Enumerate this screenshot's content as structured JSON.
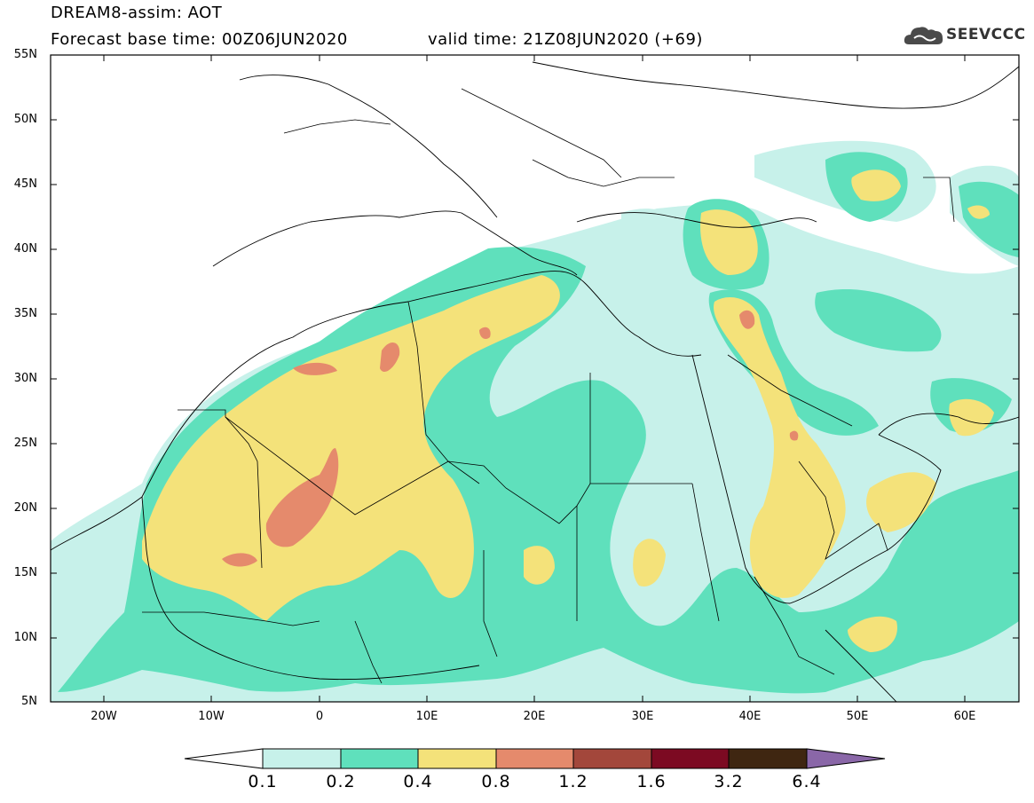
{
  "title": {
    "line1": "DREAM8-assim: AOT",
    "line2": "Forecast base time: 00Z06JUN2020",
    "line2b": "valid time: 21Z08JUN2020 (+69)"
  },
  "logo": {
    "text": "SEEVCCC",
    "icon": "cloud-icon"
  },
  "axes": {
    "lat_labels": [
      "55N",
      "50N",
      "45N",
      "40N",
      "35N",
      "30N",
      "25N",
      "20N",
      "15N",
      "10N",
      "5N"
    ],
    "lon_labels": [
      "20W",
      "10W",
      "0",
      "10E",
      "20E",
      "30E",
      "40E",
      "50E",
      "60E"
    ],
    "lat_range": [
      5,
      55
    ],
    "lon_range": [
      -25,
      65
    ]
  },
  "colorbar": {
    "labels": [
      "0.1",
      "0.2",
      "0.4",
      "0.8",
      "1.2",
      "1.6",
      "3.2",
      "6.4"
    ],
    "colors": [
      "#ffffff",
      "#c7f1ea",
      "#5fe0bc",
      "#f4e27a",
      "#e58a6c",
      "#a3473b",
      "#7c0a22",
      "#3f2611",
      "#8a67a8"
    ]
  },
  "legend": {
    "aot_colors": {
      "c1": "#c7f1ea",
      "c2": "#5fe0bc",
      "c3": "#f4e27a",
      "c4": "#e58a6c"
    }
  }
}
